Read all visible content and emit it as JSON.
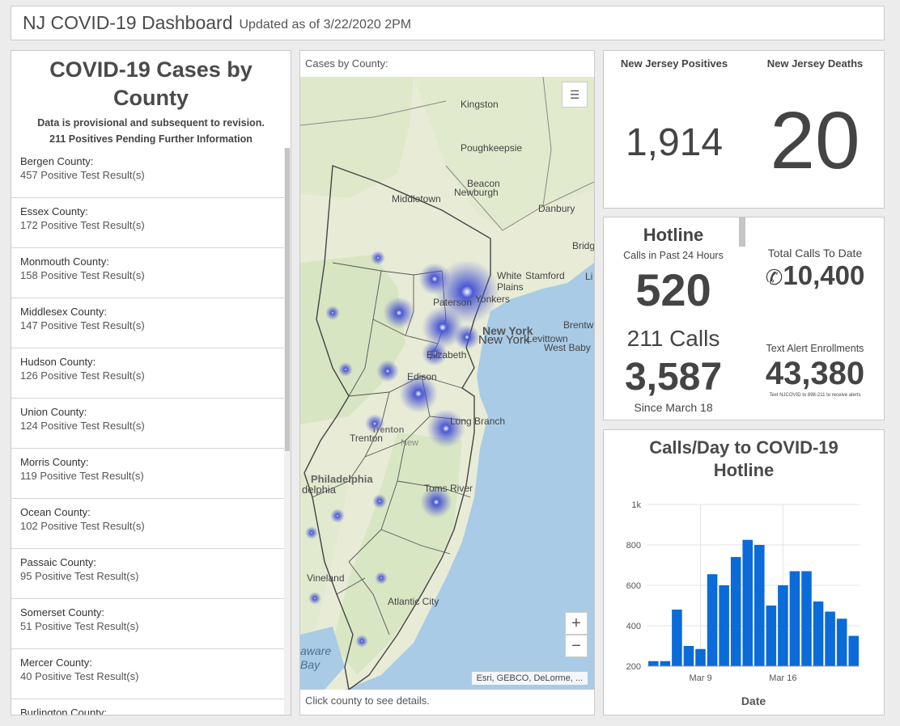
{
  "header": {
    "title": "NJ COVID-19 Dashboard",
    "subtitle": "Updated as of 3/22/2020 2PM"
  },
  "county_panel": {
    "title_line1": "COVID-19 Cases by",
    "title_line2": "County",
    "note1": "Data is provisional and subsequent to revision.",
    "note2": "211 Positives Pending Further Information",
    "items": [
      {
        "name": "Bergen County:",
        "count": "457 Positive Test Result(s)"
      },
      {
        "name": "Essex County:",
        "count": "172 Positive Test Result(s)"
      },
      {
        "name": "Monmouth County:",
        "count": "158 Positive Test Result(s)"
      },
      {
        "name": "Middlesex County:",
        "count": "147 Positive Test Result(s)"
      },
      {
        "name": "Hudson County:",
        "count": "126 Positive Test Result(s)"
      },
      {
        "name": "Union County:",
        "count": "124 Positive Test Result(s)"
      },
      {
        "name": "Morris County:",
        "count": "119 Positive Test Result(s)"
      },
      {
        "name": "Ocean County:",
        "count": "102 Positive Test Result(s)"
      },
      {
        "name": "Passaic County:",
        "count": "95 Positive Test Result(s)"
      },
      {
        "name": "Somerset County:",
        "count": "51 Positive Test Result(s)"
      },
      {
        "name": "Mercer County:",
        "count": "40 Positive Test Result(s)"
      },
      {
        "name": "Burlington County:",
        "count": ""
      }
    ]
  },
  "map": {
    "title": "Cases by County:",
    "footer": "Click county to see details.",
    "attribution": "Esri, GEBCO, DeLorme, ...",
    "zoom_in": "+",
    "zoom_out": "−",
    "places": {
      "kingston": "Kingston",
      "poughkeepsie": "Poughkeepsie",
      "beacon": "Beacon",
      "newburgh": "Newburgh",
      "middletown": "Middletown",
      "danbury": "Danbury",
      "bridgeport": "Bridg",
      "stamford": "Stamford",
      "white_plains": "White\nPlains",
      "yonkers": "Yonkers",
      "paterson": "Paterson",
      "new_york_big": "New York",
      "new_york": "New York",
      "brentwood": "Brentw",
      "levittown": "Levittown",
      "west_babylon": "West Baby",
      "elizabeth": "Elizabeth",
      "edison": "Edison",
      "long_branch": "Long Branch",
      "trenton_big": "Trenton",
      "trenton": "Trenton",
      "philadelphia_big": "Philadelphia",
      "philadelphia": "delphia",
      "toms_river": "Toms River",
      "vineland": "Vineland",
      "atlantic_city": "Atlantic City",
      "delaware_bay": "aware\nBay",
      "li": "Li",
      "new": "New"
    }
  },
  "stats": {
    "positives_label": "New Jersey Positives",
    "positives_value": "1,914",
    "deaths_label": "New Jersey Deaths",
    "deaths_value": "20"
  },
  "hotline": {
    "title": "Hotline",
    "calls24_label": "Calls in Past 24 Hours",
    "calls24_value": "520",
    "calls211_label": "211 Calls",
    "calls211_value": "3,587",
    "since": "Since March 18",
    "total_label": "Total Calls To Date",
    "total_value": "10,400",
    "text_label": "Text Alert Enrollments",
    "text_value": "43,380",
    "text_note": "Text NJCOVID to 898-211 to receive alerts"
  },
  "chart_data": {
    "type": "bar",
    "title": "Calls/Day to COVID-19 Hotline",
    "xlabel": "Date",
    "ylabel": "",
    "ylim": [
      200,
      1000
    ],
    "ytick_labels": [
      "200",
      "400",
      "600",
      "800",
      "1k"
    ],
    "ytick_values": [
      200,
      400,
      600,
      800,
      1000
    ],
    "xtick_labels": [
      "Mar 9",
      "Mar 16"
    ],
    "xtick_index": [
      4.5,
      11.5
    ],
    "bar_color": "#0b6bd8",
    "values": [
      225,
      225,
      480,
      300,
      285,
      655,
      600,
      740,
      825,
      800,
      500,
      600,
      670,
      670,
      520,
      470,
      435,
      350
    ]
  }
}
